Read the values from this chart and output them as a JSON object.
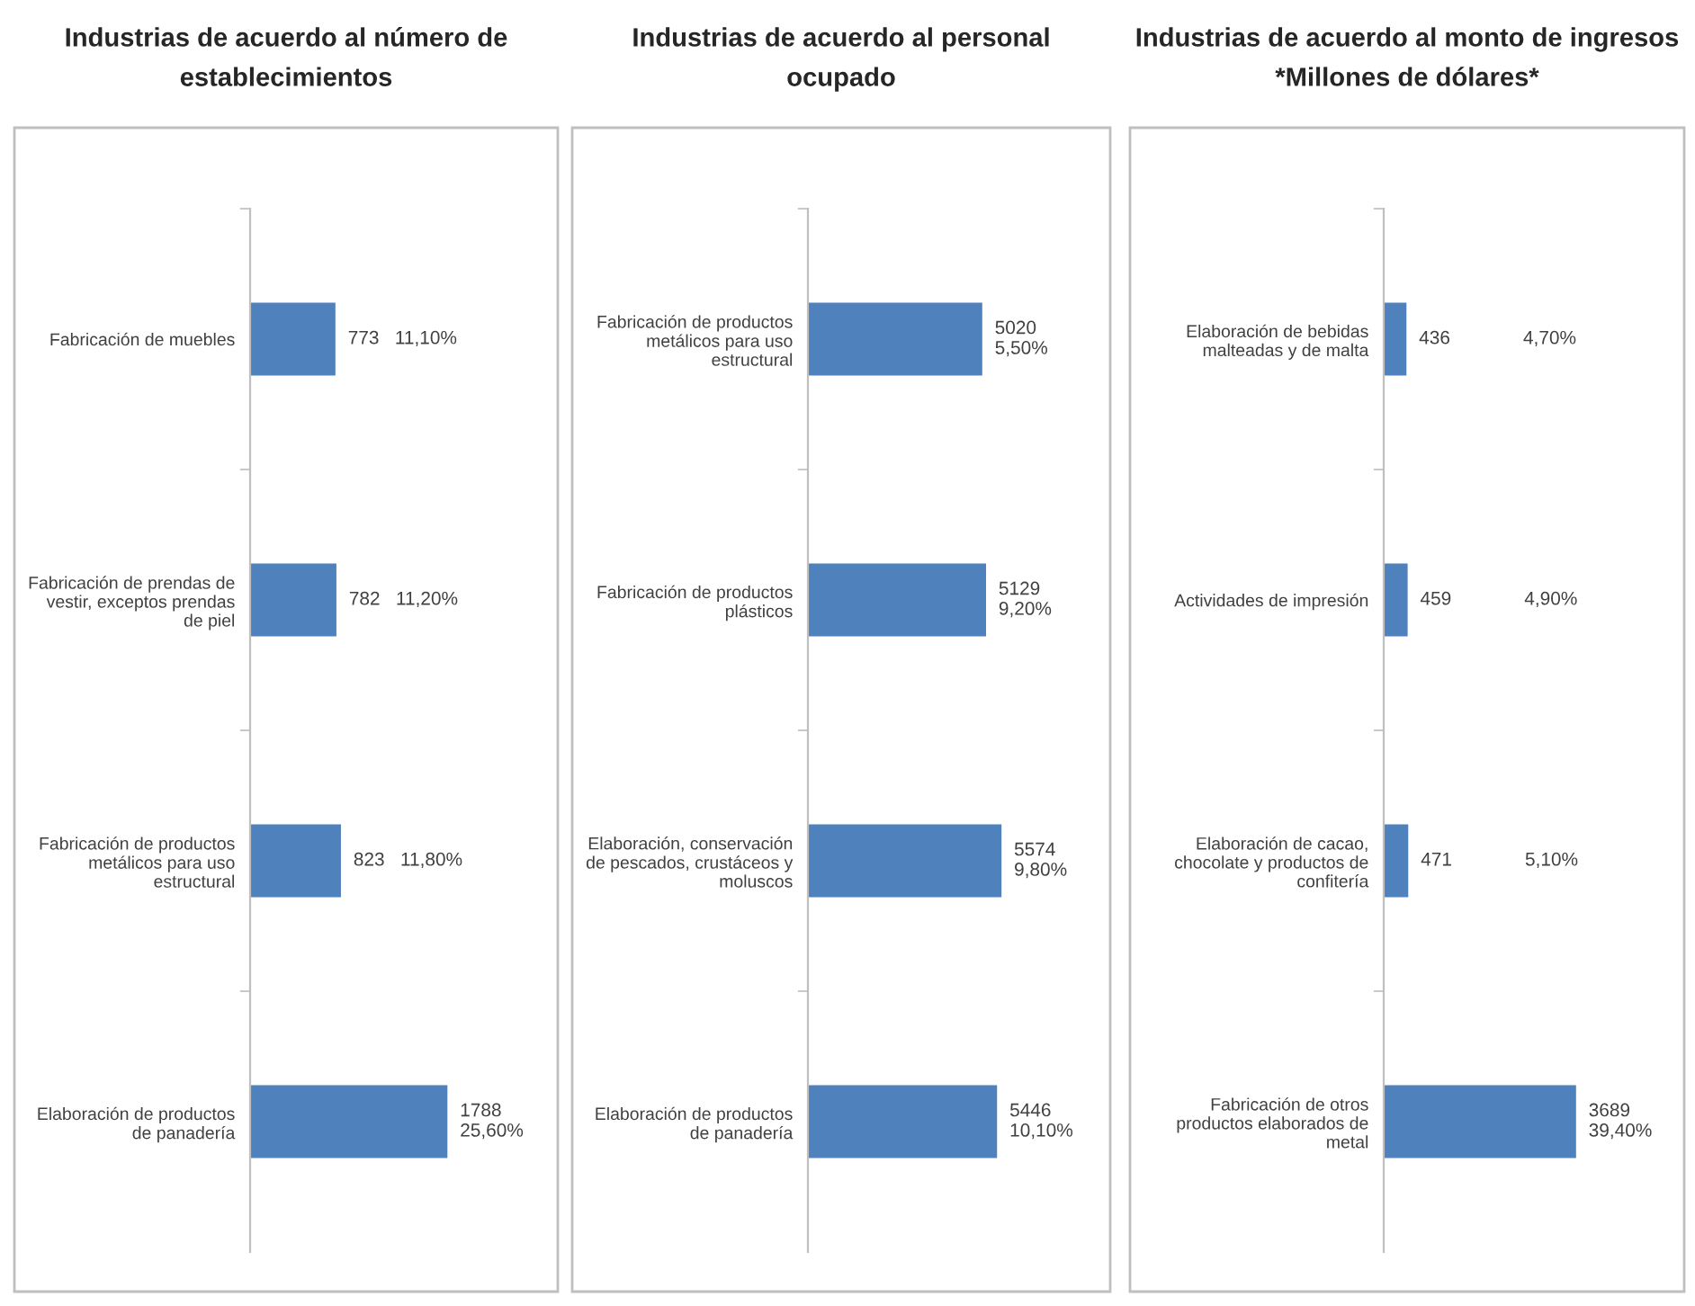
{
  "chart_data": [
    {
      "type": "bar",
      "orientation": "horizontal",
      "title": "Industrias de acuerdo al número de establecimientos",
      "categories": [
        "Fabricación de muebles",
        "Fabricación de prendas de vestir, exceptos prendas de piel",
        "Fabricación de productos metálicos para uso estructural",
        "Elaboración de productos de panadería"
      ],
      "values": [
        773,
        782,
        823,
        1788
      ],
      "value_labels": [
        "773   11,10%",
        "782   11,20%",
        "823   11,80%",
        "1788\n25,60%"
      ],
      "color": "#4f81bd",
      "tick_labels": "y",
      "grid": false
    },
    {
      "type": "bar",
      "orientation": "horizontal",
      "title": "Industrias de acuerdo al personal ocupado",
      "categories": [
        "Fabricación de productos metálicos para uso estructural",
        "Fabricación de productos plásticos",
        "Elaboración, conservación de pescados, crustáceos y moluscos",
        "Elaboración de productos de panadería"
      ],
      "values": [
        5020,
        5129,
        5574,
        5446
      ],
      "value_labels": [
        "5020\n5,50%",
        "5129\n9,20%",
        "5574\n9,80%",
        "5446\n10,10%"
      ],
      "color": "#4f81bd",
      "tick_labels": "y",
      "grid": false
    },
    {
      "type": "bar",
      "orientation": "horizontal",
      "title": "Industrias de acuerdo al monto de ingresos",
      "subtitle": "*Millones de dólares*",
      "categories": [
        "Elaboración de bebidas malteadas y de malta",
        "Actividades de impresión",
        "Elaboración de cacao, chocolate y productos de confitería",
        "Fabricación de otros productos elaborados de metal"
      ],
      "values": [
        436,
        459,
        471,
        3689
      ],
      "value_labels": [
        "436              4,70%",
        "459              4,90%",
        "471              5,10%",
        "3689\n39,40%"
      ],
      "color": "#4f81bd",
      "tick_labels": "y",
      "grid": false
    }
  ]
}
